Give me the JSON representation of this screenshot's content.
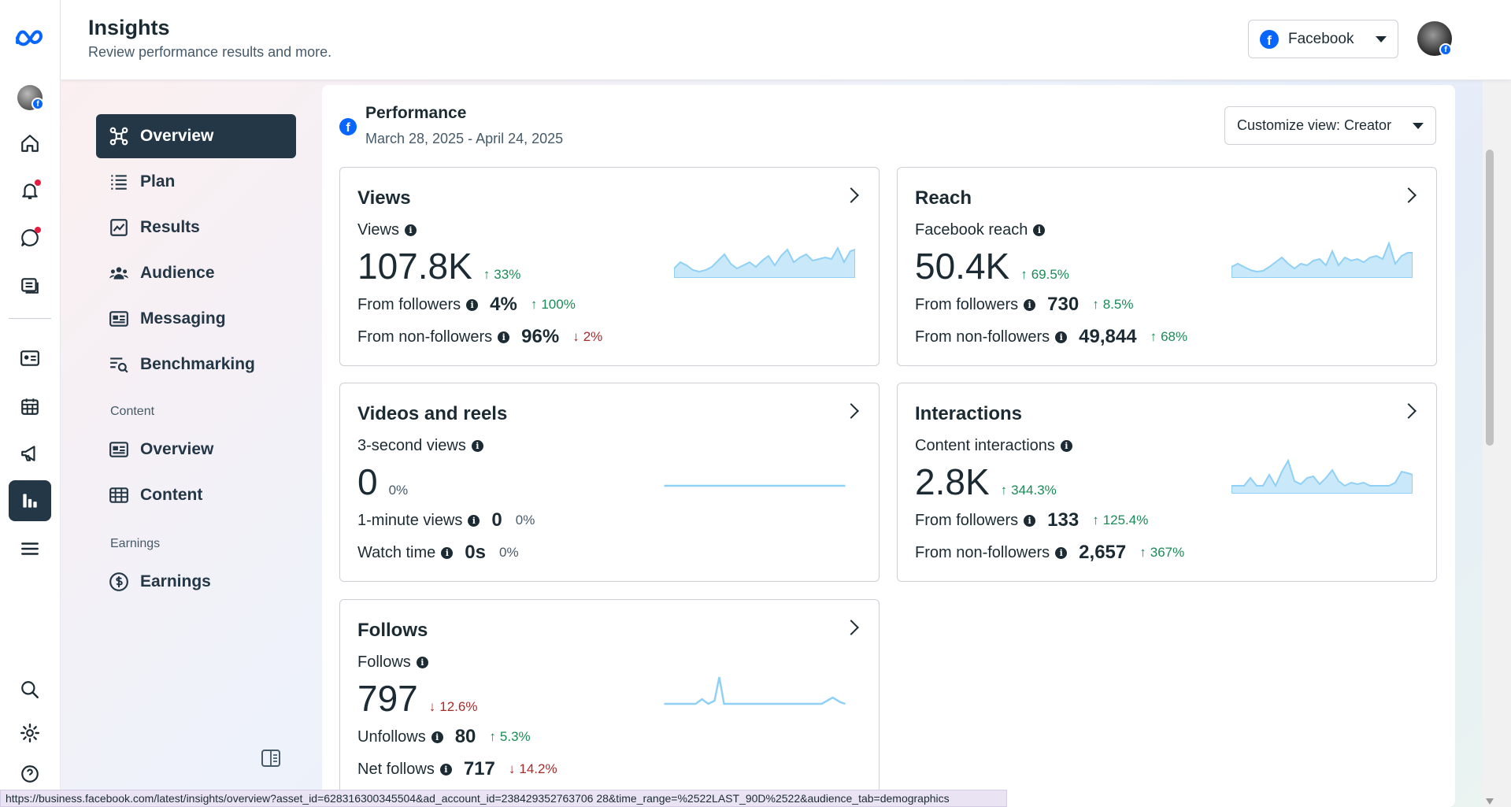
{
  "header": {
    "title": "Insights",
    "subtitle": "Review performance results and more.",
    "platform_select": "Facebook"
  },
  "rail": {
    "items": [
      "meta-logo",
      "profile",
      "home",
      "notifications",
      "messages",
      "posts",
      "contacts",
      "calendar",
      "ads",
      "insights",
      "all-tools",
      "search",
      "settings",
      "help"
    ]
  },
  "subnav": {
    "items": [
      {
        "label": "Overview",
        "icon": "overview-icon"
      },
      {
        "label": "Plan",
        "icon": "plan-icon"
      },
      {
        "label": "Results",
        "icon": "results-icon"
      },
      {
        "label": "Audience",
        "icon": "audience-icon"
      },
      {
        "label": "Messaging",
        "icon": "messaging-icon"
      },
      {
        "label": "Benchmarking",
        "icon": "benchmarking-icon"
      }
    ],
    "content_section": "Content",
    "content_items": [
      {
        "label": "Overview",
        "icon": "content-overview-icon"
      },
      {
        "label": "Content",
        "icon": "content-table-icon"
      }
    ],
    "earnings_section": "Earnings",
    "earnings_items": [
      {
        "label": "Earnings",
        "icon": "dollar-icon"
      }
    ]
  },
  "performance": {
    "title": "Performance",
    "dates": "March 28, 2025 - April 24, 2025",
    "customize": "Customize view: Creator"
  },
  "cards": {
    "views": {
      "title": "Views",
      "label": "Views",
      "value": "107.8K",
      "delta": "33%",
      "row1_label": "From followers",
      "row1_value": "4%",
      "row1_delta": "100%",
      "row2_label": "From non-followers",
      "row2_value": "96%",
      "row2_delta": "2%"
    },
    "reach": {
      "title": "Reach",
      "label": "Facebook reach",
      "value": "50.4K",
      "delta": "69.5%",
      "row1_label": "From followers",
      "row1_value": "730",
      "row1_delta": "8.5%",
      "row2_label": "From non-followers",
      "row2_value": "49,844",
      "row2_delta": "68%"
    },
    "videos": {
      "title": "Videos and reels",
      "label": "3-second views",
      "value": "0",
      "delta": "0%",
      "row1_label": "1-minute views",
      "row1_value": "0",
      "row1_delta": "0%",
      "row2_label": "Watch time",
      "row2_value": "0s",
      "row2_delta": "0%"
    },
    "interactions": {
      "title": "Interactions",
      "label": "Content interactions",
      "value": "2.8K",
      "delta": "344.3%",
      "row1_label": "From followers",
      "row1_value": "133",
      "row1_delta": "125.4%",
      "row2_label": "From non-followers",
      "row2_value": "2,657",
      "row2_delta": "367%"
    },
    "follows": {
      "title": "Follows",
      "label": "Follows",
      "value": "797",
      "delta": "12.6%",
      "row1_label": "Unfollows",
      "row1_value": "80",
      "row1_delta": "5.3%",
      "row2_label": "Net follows",
      "row2_value": "717",
      "row2_delta": "14.2%"
    }
  },
  "status_url": "https://business.facebook.com/latest/insights/overview?asset_id=628316300345504&ad_account_id=238429352763706 28&time_range=%2522LAST_90D%2522&audience_tab=demographics",
  "colors": {
    "accent": "#0866ff",
    "nav_active": "#243746",
    "up": "#1a8b56",
    "down": "#a82b2b",
    "spark": "#a9dcf7"
  }
}
